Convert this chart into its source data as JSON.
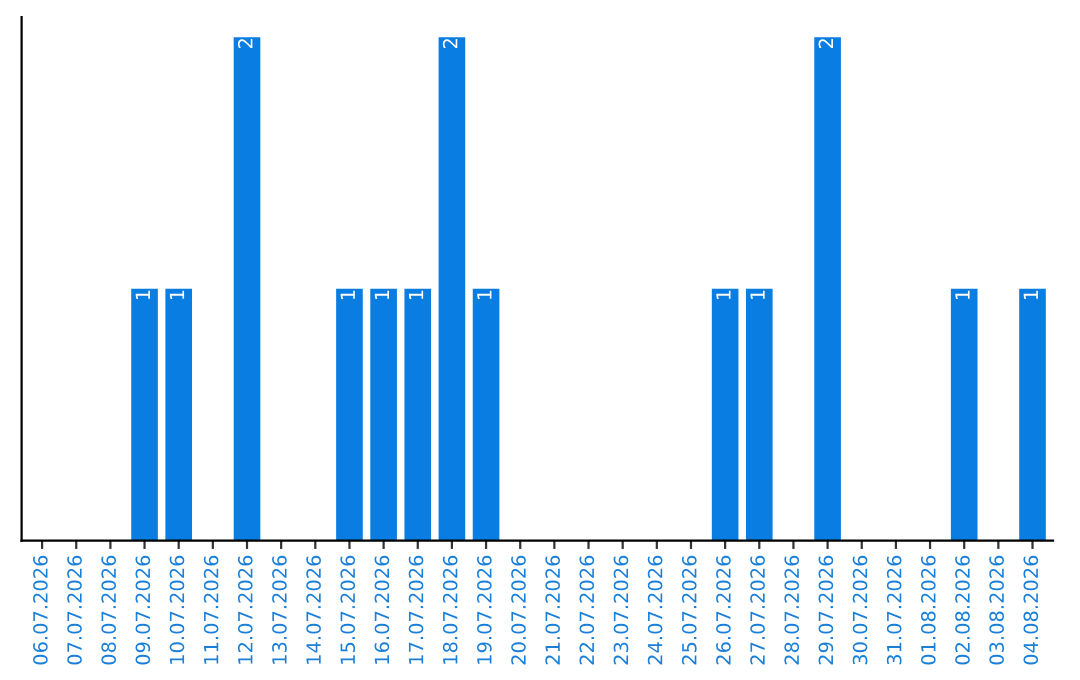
{
  "chart_data": {
    "type": "bar",
    "categories": [
      "06.07.2026",
      "07.07.2026",
      "08.07.2026",
      "09.07.2026",
      "10.07.2026",
      "11.07.2026",
      "12.07.2026",
      "13.07.2026",
      "14.07.2026",
      "15.07.2026",
      "16.07.2026",
      "17.07.2026",
      "18.07.2026",
      "19.07.2026",
      "20.07.2026",
      "21.07.2026",
      "22.07.2026",
      "23.07.2026",
      "24.07.2026",
      "25.07.2026",
      "26.07.2026",
      "27.07.2026",
      "28.07.2026",
      "29.07.2026",
      "30.07.2026",
      "31.07.2026",
      "01.08.2026",
      "02.08.2026",
      "03.08.2026",
      "04.08.2026"
    ],
    "values": [
      0,
      0,
      0,
      1,
      1,
      0,
      2,
      0,
      0,
      1,
      1,
      1,
      2,
      1,
      0,
      0,
      0,
      0,
      0,
      0,
      1,
      1,
      0,
      2,
      0,
      0,
      0,
      1,
      0,
      1
    ],
    "value_labels": [
      null,
      null,
      null,
      "1",
      "1",
      null,
      "2",
      null,
      null,
      "1",
      "1",
      "1",
      "2",
      "1",
      null,
      null,
      null,
      null,
      null,
      null,
      "1",
      "1",
      null,
      "2",
      null,
      null,
      null,
      "1",
      null,
      "1"
    ],
    "color": "#0a7de3",
    "tick_labels": "x",
    "grid": false,
    "legend": false
  }
}
